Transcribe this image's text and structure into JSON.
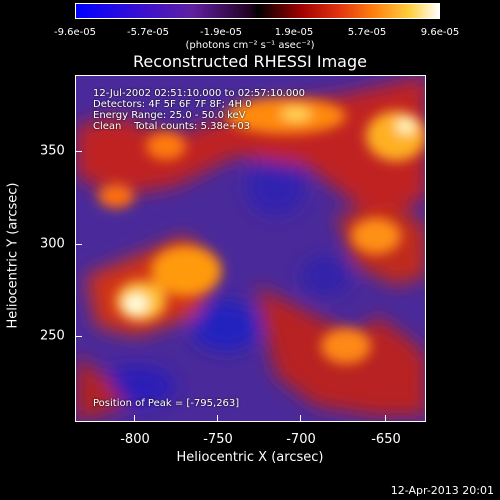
{
  "colorbar": {
    "ticks": [
      "-9.6e-05",
      "-5.7e-05",
      "-1.9e-05",
      "1.9e-05",
      "5.7e-05",
      "9.6e-05"
    ],
    "units": "(photons cm⁻² s⁻¹ asec⁻²)",
    "range": [
      -9.6e-05,
      9.6e-05
    ]
  },
  "title": "Reconstructed RHESSI Image",
  "info": {
    "time": "12-Jul-2002 02:51:10.000 to 02:57:10.000",
    "detectors": "Detectors: 4F 5F 6F 7F 8F; 4H 0",
    "energy": "Energy Range: 25.0 - 50.0 keV",
    "clean": "Clean    Total counts: 5.38e+03"
  },
  "peak": "Position of Peak = [-795,263]",
  "axes": {
    "xlabel": "Heliocentric X (arcsec)",
    "ylabel": "Heliocentric Y (arcsec)",
    "xticks": [
      "-800",
      "-750",
      "-700",
      "-650"
    ],
    "yticks": [
      "250",
      "300",
      "350"
    ],
    "xlim": [
      -835,
      -640
    ],
    "ylim": [
      195,
      393
    ]
  },
  "datestamp": "12-Apr-2013 20:01"
}
